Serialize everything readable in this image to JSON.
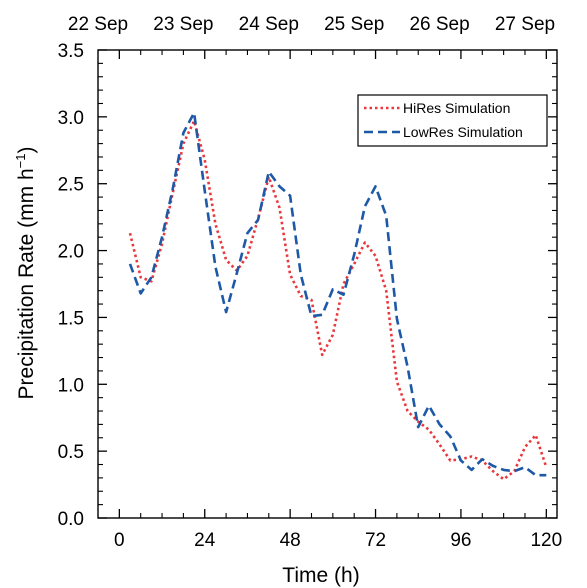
{
  "chart_data": {
    "type": "line",
    "xlabel": "Time (h)",
    "ylabel_prefix": "Precipitation Rate (mm h",
    "ylabel_sup": "−1",
    "ylabel_suffix": ")",
    "xlim": [
      -6,
      123
    ],
    "ylim": [
      0,
      3.5
    ],
    "xticks": [
      0,
      24,
      48,
      72,
      96,
      120
    ],
    "yticks": [
      0.0,
      0.5,
      1.0,
      1.5,
      2.0,
      2.5,
      3.0,
      3.5
    ],
    "ytick_labels": [
      "0.0",
      "0.5",
      "1.0",
      "1.5",
      "2.0",
      "2.5",
      "3.0",
      "3.5"
    ],
    "top_axis_ticks": [
      -6,
      18,
      42,
      66,
      90,
      114
    ],
    "top_axis_labels": [
      "22 Sep",
      "23 Sep",
      "24 Sep",
      "25 Sep",
      "26 Sep",
      "27 Sep"
    ],
    "legend_position": "top-right",
    "series": [
      {
        "name": "HiRes Simulation",
        "color": "#e8383d",
        "style": "dotted",
        "x": [
          3,
          6,
          9,
          12,
          15,
          18,
          21,
          24,
          27,
          30,
          33,
          36,
          39,
          42,
          45,
          48,
          51,
          54,
          57,
          60,
          63,
          66,
          69,
          72,
          75,
          78,
          81,
          84,
          87,
          90,
          93,
          96,
          99,
          102,
          105,
          108,
          111,
          114,
          117,
          120
        ],
        "y": [
          2.13,
          1.8,
          1.77,
          2.05,
          2.43,
          2.8,
          2.97,
          2.68,
          2.2,
          1.93,
          1.85,
          1.96,
          2.24,
          2.55,
          2.32,
          1.82,
          1.66,
          1.63,
          1.22,
          1.37,
          1.75,
          1.9,
          2.06,
          1.96,
          1.7,
          1.02,
          0.8,
          0.72,
          0.66,
          0.55,
          0.43,
          0.44,
          0.46,
          0.43,
          0.35,
          0.29,
          0.35,
          0.53,
          0.62,
          0.38
        ]
      },
      {
        "name": "LowRes Simulation",
        "color": "#1d59a6",
        "style": "dashed",
        "x": [
          3,
          6,
          9,
          12,
          15,
          18,
          21,
          24,
          27,
          30,
          33,
          36,
          39,
          42,
          45,
          48,
          51,
          54,
          57,
          60,
          63,
          66,
          69,
          72,
          75,
          78,
          81,
          84,
          87,
          90,
          93,
          96,
          99,
          102,
          105,
          108,
          111,
          114,
          117,
          120
        ],
        "y": [
          1.9,
          1.68,
          1.8,
          2.1,
          2.46,
          2.88,
          3.03,
          2.45,
          1.88,
          1.54,
          1.83,
          2.13,
          2.23,
          2.59,
          2.48,
          2.41,
          1.82,
          1.51,
          1.52,
          1.71,
          1.67,
          1.97,
          2.33,
          2.48,
          2.26,
          1.49,
          1.13,
          0.68,
          0.84,
          0.7,
          0.61,
          0.43,
          0.36,
          0.44,
          0.39,
          0.36,
          0.35,
          0.38,
          0.32,
          0.32
        ]
      }
    ]
  }
}
